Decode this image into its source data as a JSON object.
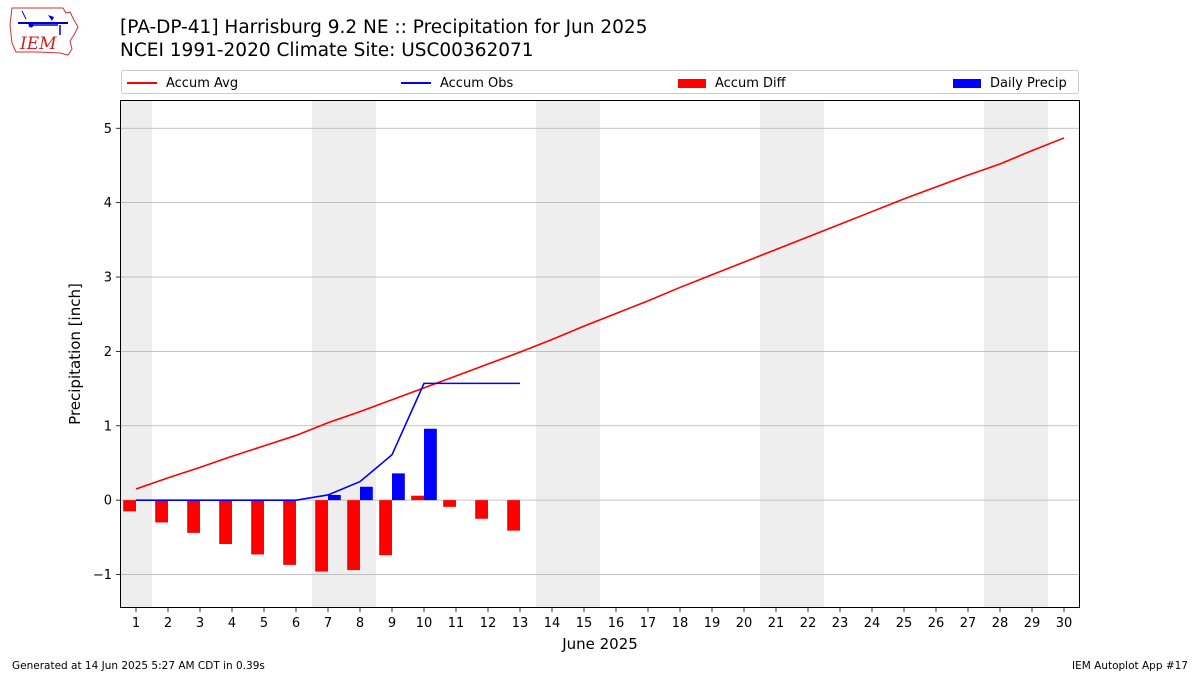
{
  "title_line1": "[PA-DP-41] Harrisburg 9.2 NE :: Precipitation for Jun 2025",
  "title_line2": "NCEI 1991-2020 Climate Site: USC00362071",
  "logo_text": "IEM",
  "footer_left": "Generated at 14 Jun 2025 5:27 AM CDT in 0.39s",
  "footer_right": "IEM Autoplot App #17",
  "colors": {
    "avg": "#ff0000",
    "obs": "#0000ff",
    "diff": "#ff0000",
    "daily": "#0000ff",
    "weekend": "#eeeeee",
    "grid": "#b0b0b0"
  },
  "legend": {
    "avg": "Accum Avg",
    "obs": "Accum Obs",
    "diff": "Accum Diff",
    "daily": "Daily Precip"
  },
  "chart_data": {
    "type": "bar",
    "xlabel": "June 2025",
    "ylabel": "Precipitation [inch]",
    "xlim": [
      0.5,
      30.5
    ],
    "ylim": [
      -1.45,
      5.38
    ],
    "yticks": [
      -1,
      0,
      1,
      2,
      3,
      4,
      5
    ],
    "ytick_labels": [
      "−1",
      "0",
      "1",
      "2",
      "3",
      "4",
      "5"
    ],
    "grid": "horizontal",
    "x": [
      1,
      2,
      3,
      4,
      5,
      6,
      7,
      8,
      9,
      10,
      11,
      12,
      13,
      14,
      15,
      16,
      17,
      18,
      19,
      20,
      21,
      22,
      23,
      24,
      25,
      26,
      27,
      28,
      29,
      30
    ],
    "weekend_shading": [
      [
        0.5,
        1.5
      ],
      [
        6.5,
        8.5
      ],
      [
        13.5,
        15.5
      ],
      [
        20.5,
        22.5
      ],
      [
        27.5,
        29.5
      ]
    ],
    "series": [
      {
        "name": "Accum Avg",
        "kind": "line",
        "values": [
          0.15,
          0.3,
          0.44,
          0.59,
          0.73,
          0.87,
          1.04,
          1.19,
          1.35,
          1.51,
          1.67,
          1.83,
          1.99,
          2.16,
          2.34,
          2.51,
          2.68,
          2.86,
          3.03,
          3.2,
          3.37,
          3.54,
          3.71,
          3.88,
          4.05,
          4.21,
          4.37,
          4.52,
          4.7,
          4.87
        ]
      },
      {
        "name": "Accum Obs",
        "kind": "line",
        "x": [
          1,
          2,
          3,
          4,
          5,
          6,
          7,
          8,
          9,
          10,
          11,
          12,
          13
        ],
        "values": [
          0,
          0,
          0,
          0,
          0,
          0,
          0.07,
          0.25,
          0.61,
          1.57,
          1.57,
          1.57,
          1.57
        ]
      },
      {
        "name": "Accum Diff",
        "kind": "bar",
        "x": [
          1,
          2,
          3,
          4,
          5,
          6,
          7,
          8,
          9,
          10,
          11,
          12,
          13
        ],
        "values": [
          -0.15,
          -0.3,
          -0.44,
          -0.59,
          -0.73,
          -0.87,
          -0.96,
          -0.94,
          -0.74,
          0.06,
          -0.09,
          -0.25,
          -0.41
        ]
      },
      {
        "name": "Daily Precip",
        "kind": "bar",
        "x": [
          1,
          2,
          3,
          4,
          5,
          6,
          7,
          8,
          9,
          10,
          11,
          12,
          13
        ],
        "values": [
          0,
          0,
          0,
          0,
          0,
          0,
          0.07,
          0.18,
          0.36,
          0.96,
          0,
          0,
          0
        ]
      }
    ]
  }
}
